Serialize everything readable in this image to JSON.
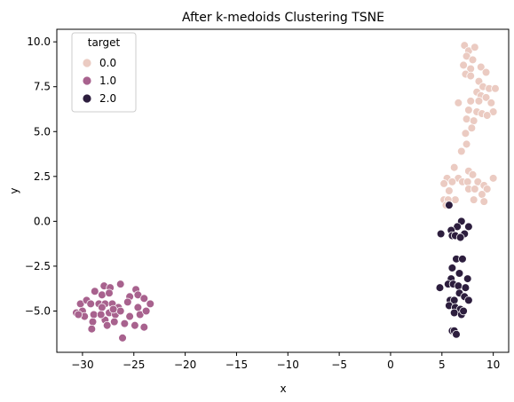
{
  "chart_data": {
    "type": "scatter",
    "title": "After k-medoids Clustering TSNE",
    "xlabel": "x",
    "ylabel": "y",
    "xlim": [
      -32.5,
      11.5
    ],
    "ylim": [
      -7.3,
      10.7
    ],
    "xticks": [
      -30,
      -25,
      -20,
      -15,
      -10,
      -5,
      0,
      5,
      10
    ],
    "xtick_labels": [
      "−30",
      "−25",
      "−20",
      "−15",
      "−10",
      "−5",
      "0",
      "5",
      "10"
    ],
    "yticks": [
      -5.0,
      -2.5,
      0.0,
      2.5,
      5.0,
      7.5,
      10.0
    ],
    "ytick_labels": [
      "−5.0",
      "−2.5",
      "0.0",
      "2.5",
      "5.0",
      "7.5",
      "10.0"
    ],
    "grid": false,
    "legend": {
      "title": "target",
      "placement": "top-left",
      "entries": [
        "0.0",
        "1.0",
        "2.0"
      ]
    },
    "series": [
      {
        "name": "0.0",
        "color": "#ebcbc2",
        "points": [
          [
            7.2,
            9.8
          ],
          [
            7.6,
            9.5
          ],
          [
            8.2,
            9.7
          ],
          [
            7.4,
            9.2
          ],
          [
            8.0,
            9.0
          ],
          [
            7.1,
            8.7
          ],
          [
            7.8,
            8.5
          ],
          [
            7.3,
            8.2
          ],
          [
            7.8,
            8.1
          ],
          [
            8.8,
            8.6
          ],
          [
            9.3,
            8.3
          ],
          [
            8.6,
            7.8
          ],
          [
            9.0,
            7.5
          ],
          [
            9.6,
            7.4
          ],
          [
            10.2,
            7.4
          ],
          [
            8.4,
            7.2
          ],
          [
            8.8,
            7.0
          ],
          [
            9.3,
            6.9
          ],
          [
            6.6,
            6.6
          ],
          [
            7.8,
            6.7
          ],
          [
            8.6,
            6.7
          ],
          [
            9.8,
            6.6
          ],
          [
            7.6,
            6.2
          ],
          [
            8.4,
            6.1
          ],
          [
            8.9,
            6.0
          ],
          [
            10.0,
            6.1
          ],
          [
            7.4,
            5.7
          ],
          [
            8.1,
            5.6
          ],
          [
            9.4,
            5.9
          ],
          [
            7.9,
            5.2
          ],
          [
            7.3,
            4.9
          ],
          [
            7.4,
            4.3
          ],
          [
            6.9,
            3.9
          ],
          [
            6.2,
            3.0
          ],
          [
            7.6,
            2.8
          ],
          [
            8.0,
            2.6
          ],
          [
            6.6,
            2.4
          ],
          [
            5.5,
            2.4
          ],
          [
            6.0,
            2.2
          ],
          [
            7.0,
            2.2
          ],
          [
            7.5,
            2.2
          ],
          [
            8.5,
            2.2
          ],
          [
            9.1,
            2.0
          ],
          [
            10.0,
            2.4
          ],
          [
            5.2,
            2.1
          ],
          [
            5.7,
            1.7
          ],
          [
            7.6,
            1.8
          ],
          [
            8.2,
            1.8
          ],
          [
            9.4,
            1.8
          ],
          [
            8.9,
            1.5
          ],
          [
            6.3,
            1.2
          ],
          [
            5.2,
            1.2
          ],
          [
            5.6,
            1.2
          ],
          [
            8.1,
            1.2
          ],
          [
            9.1,
            1.1
          ],
          [
            5.4,
            0.9
          ]
        ]
      },
      {
        "name": "1.0",
        "color": "#a8628e",
        "points": [
          [
            -26.3,
            -3.5
          ],
          [
            -24.8,
            -3.8
          ],
          [
            -27.9,
            -3.6
          ],
          [
            -28.8,
            -3.9
          ],
          [
            -27.3,
            -3.7
          ],
          [
            -30.2,
            -4.6
          ],
          [
            -29.6,
            -4.4
          ],
          [
            -28.1,
            -4.1
          ],
          [
            -27.4,
            -4.0
          ],
          [
            -25.4,
            -4.2
          ],
          [
            -24.6,
            -4.1
          ],
          [
            -24.0,
            -4.3
          ],
          [
            -30.6,
            -5.1
          ],
          [
            -30.0,
            -5.0
          ],
          [
            -29.2,
            -4.6
          ],
          [
            -28.4,
            -4.6
          ],
          [
            -27.8,
            -4.6
          ],
          [
            -27.1,
            -4.6
          ],
          [
            -26.5,
            -4.8
          ],
          [
            -25.6,
            -4.5
          ],
          [
            -24.6,
            -4.8
          ],
          [
            -23.4,
            -4.6
          ],
          [
            -29.8,
            -5.3
          ],
          [
            -28.9,
            -5.2
          ],
          [
            -28.1,
            -4.8
          ],
          [
            -27.4,
            -5.1
          ],
          [
            -26.8,
            -5.2
          ],
          [
            -26.3,
            -5.0
          ],
          [
            -25.4,
            -5.3
          ],
          [
            -24.4,
            -5.2
          ],
          [
            -23.8,
            -5.0
          ],
          [
            -30.4,
            -5.2
          ],
          [
            -29.0,
            -5.6
          ],
          [
            -27.8,
            -5.5
          ],
          [
            -26.9,
            -5.6
          ],
          [
            -25.9,
            -5.7
          ],
          [
            -24.9,
            -5.8
          ],
          [
            -24.0,
            -5.9
          ],
          [
            -29.1,
            -6.0
          ],
          [
            -27.6,
            -5.8
          ],
          [
            -26.1,
            -6.5
          ],
          [
            -28.2,
            -5.2
          ],
          [
            -27.0,
            -4.9
          ]
        ]
      },
      {
        "name": "2.0",
        "color": "#2d1e3e",
        "points": [
          [
            5.7,
            0.9
          ],
          [
            6.9,
            0.0
          ],
          [
            7.6,
            -0.3
          ],
          [
            6.5,
            -0.3
          ],
          [
            5.9,
            -0.5
          ],
          [
            4.9,
            -0.7
          ],
          [
            6.0,
            -0.8
          ],
          [
            6.3,
            -0.8
          ],
          [
            7.2,
            -0.7
          ],
          [
            6.8,
            -0.9
          ],
          [
            6.4,
            -2.1
          ],
          [
            7.0,
            -2.1
          ],
          [
            6.0,
            -2.6
          ],
          [
            5.9,
            -3.2
          ],
          [
            6.7,
            -2.9
          ],
          [
            7.5,
            -3.2
          ],
          [
            5.6,
            -3.5
          ],
          [
            6.1,
            -3.5
          ],
          [
            6.6,
            -3.6
          ],
          [
            7.3,
            -3.7
          ],
          [
            4.8,
            -3.7
          ],
          [
            6.7,
            -4.0
          ],
          [
            7.2,
            -4.2
          ],
          [
            5.8,
            -4.4
          ],
          [
            6.2,
            -4.4
          ],
          [
            7.6,
            -4.4
          ],
          [
            5.7,
            -4.7
          ],
          [
            6.3,
            -4.8
          ],
          [
            6.8,
            -4.9
          ],
          [
            6.2,
            -5.1
          ],
          [
            6.9,
            -5.2
          ],
          [
            7.1,
            -5.0
          ],
          [
            6.0,
            -6.1
          ],
          [
            6.2,
            -6.1
          ],
          [
            6.4,
            -6.3
          ]
        ]
      }
    ]
  }
}
